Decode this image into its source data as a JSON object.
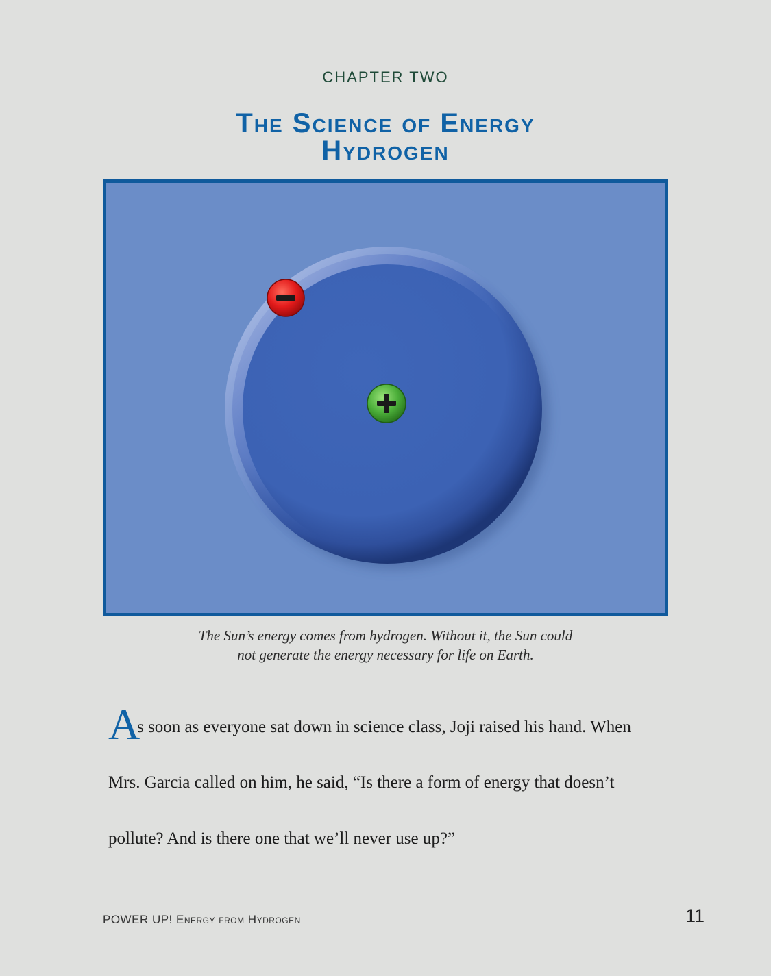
{
  "header": {
    "chapter_label": "CHAPTER TWO",
    "title_line1": "The Science of Energy",
    "title_line2": "Hydrogen"
  },
  "figure": {
    "electron_symbol": "minus-icon",
    "proton_symbol": "plus-icon",
    "colors": {
      "background": "#6b8dc8",
      "border": "#105a9c",
      "orbit": "#3d63b3",
      "electron": "#e31b1b",
      "proton": "#4caf3a"
    }
  },
  "caption": {
    "line1": "The Sun’s energy comes from hydrogen. Without it, the Sun could",
    "line2": "not generate the energy necessary for life on Earth."
  },
  "body": {
    "drop_cap": "A",
    "line1_rest": "s soon as everyone sat down in science class, Joji raised his hand. When",
    "line2": "Mrs. Garcia called on him, he said, “Is there a form of energy that doesn’t",
    "line3": "pollute? And is there one that we’ll never use up?”"
  },
  "footer": {
    "book_title": "POWER UP! Energy from Hydrogen",
    "page_number": "11"
  }
}
